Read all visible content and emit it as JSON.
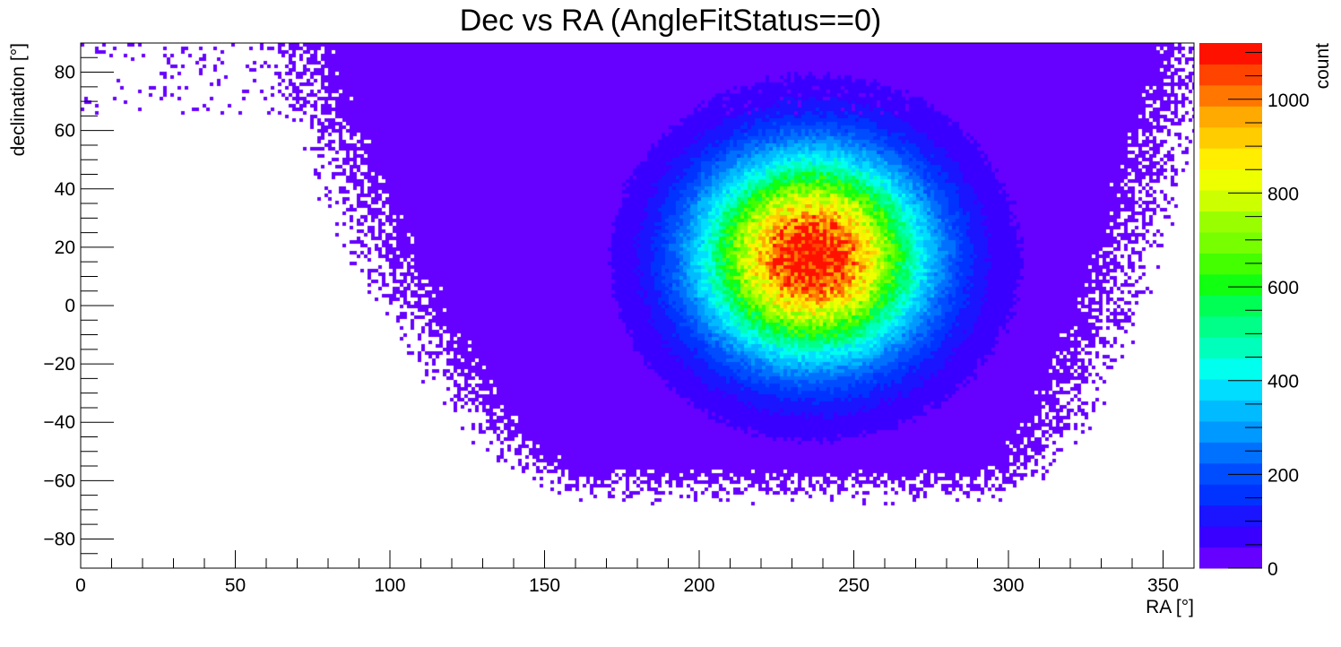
{
  "chart_data": {
    "type": "heatmap",
    "title": "Dec vs RA (AngleFitStatus==0)",
    "xlabel": "RA [°]",
    "ylabel": "declination [°]",
    "zlabel": "count",
    "xlim": [
      0,
      360
    ],
    "ylim": [
      -90,
      90
    ],
    "zlim": [
      0,
      1120
    ],
    "x_ticks": [
      0,
      50,
      100,
      150,
      200,
      250,
      300,
      350
    ],
    "y_ticks": [
      -80,
      -60,
      -40,
      -20,
      0,
      20,
      40,
      60,
      80
    ],
    "z_ticks": [
      0,
      200,
      400,
      600,
      800,
      1000
    ],
    "peak": {
      "ra": 236,
      "dec": 17,
      "count": 1110
    },
    "palette": [
      "#6600ff",
      "#3a00ff",
      "#1a14ff",
      "#0033ff",
      "#004dff",
      "#0070ff",
      "#0099ff",
      "#00bbff",
      "#00ddff",
      "#00ffee",
      "#00ffbb",
      "#00ff88",
      "#00ff55",
      "#11ff11",
      "#44ff00",
      "#77ff00",
      "#99ff00",
      "#ccff00",
      "#eeff00",
      "#ffee00",
      "#ffcc00",
      "#ffaa00",
      "#ff7700",
      "#ff4400",
      "#ff1100"
    ],
    "grid": false,
    "legend": "right colorbar"
  }
}
